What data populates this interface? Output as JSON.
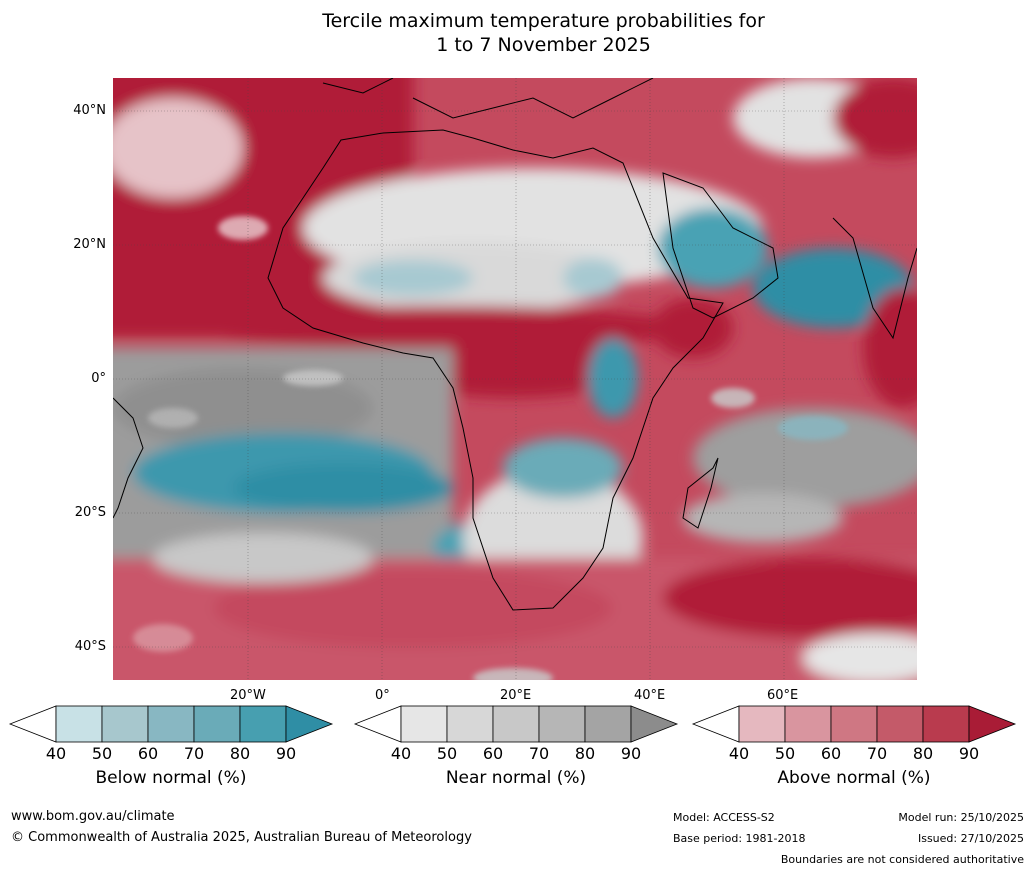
{
  "title": {
    "line1": "Tercile maximum temperature probabilities for",
    "line2": "1 to 7 November 2025"
  },
  "map": {
    "lat_labels": [
      "40°N",
      "20°N",
      "0°",
      "20°S",
      "40°S"
    ],
    "lon_labels": [
      "20°W",
      "0°",
      "20°E",
      "40°E",
      "60°E"
    ]
  },
  "colorbars": [
    {
      "label": "Below normal (%)",
      "ticks": [
        "40",
        "50",
        "60",
        "70",
        "80",
        "90"
      ],
      "colors": [
        "#c8e1e6",
        "#a7c7cd",
        "#88b7c2",
        "#6aabb8",
        "#479fb0",
        "#2f8ea5"
      ]
    },
    {
      "label": "Near normal (%)",
      "ticks": [
        "40",
        "50",
        "60",
        "70",
        "80",
        "90"
      ],
      "colors": [
        "#e6e6e6",
        "#d7d7d7",
        "#c8c8c8",
        "#b6b6b6",
        "#a4a4a4",
        "#8c8c8c"
      ]
    },
    {
      "label": "Above normal (%)",
      "ticks": [
        "40",
        "50",
        "60",
        "70",
        "80",
        "90"
      ],
      "colors": [
        "#e5b8bf",
        "#d9959f",
        "#cf7783",
        "#c45a69",
        "#b93b4e",
        "#a91c36"
      ]
    }
  ],
  "footer": {
    "website": "www.bom.gov.au/climate",
    "copyright": "© Commonwealth of Australia 2025, Australian Bureau of Meteorology",
    "model": "Model: ACCESS-S2",
    "base_period": "Base period: 1981-2018",
    "model_run": "Model run: 25/10/2025",
    "issued": "Issued: 27/10/2025",
    "disclaimer": "Boundaries are not considered authoritative"
  }
}
